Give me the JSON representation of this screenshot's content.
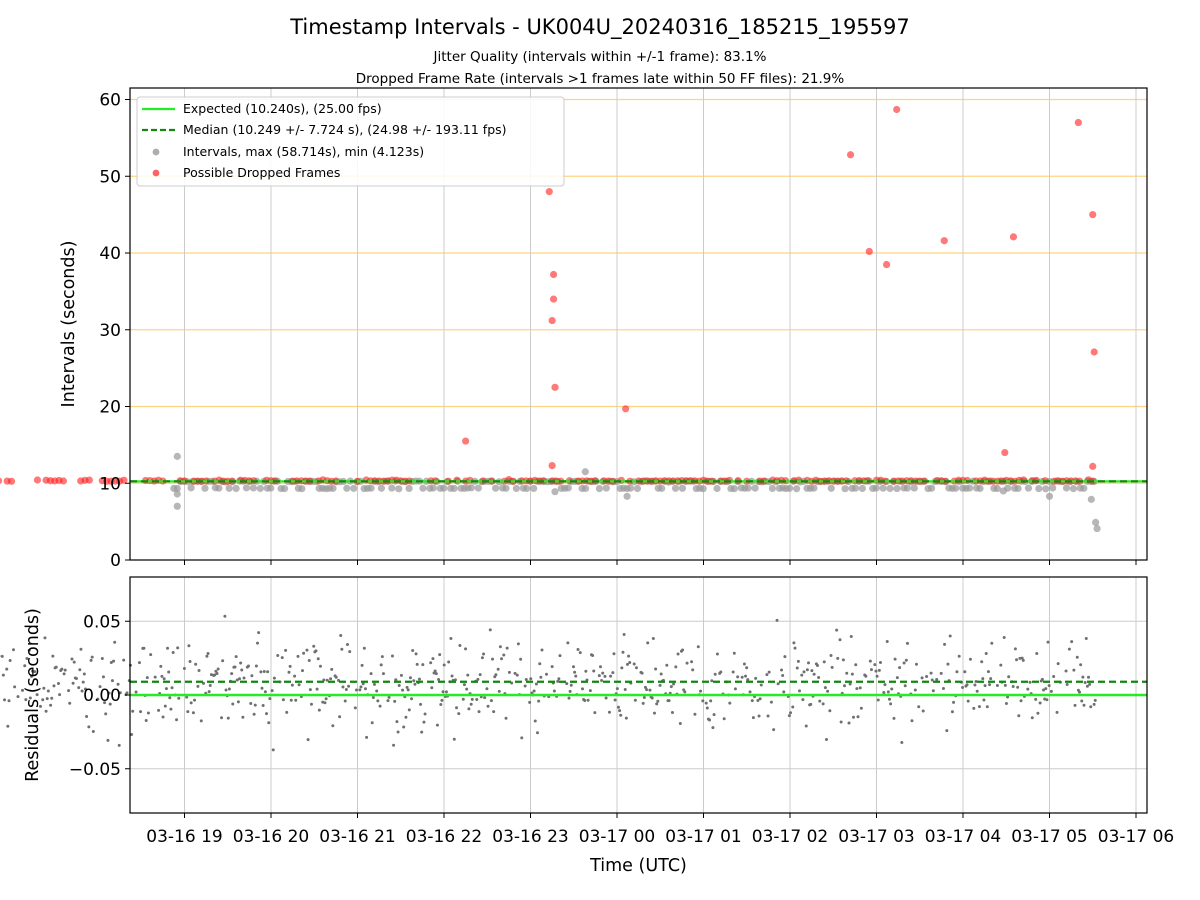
{
  "title": "Timestamp Intervals - UK004U_20240316_185215_195597",
  "subtitle_jitter": "Jitter Quality (intervals within +/-1 frame): 83.1%",
  "subtitle_dropped": "Dropped Frame Rate (intervals >1 frames late within 50 FF files): 21.9%",
  "colors": {
    "expected": "#22ee22",
    "median": "#118811",
    "intervals": "#999999",
    "dropped": "#ff2020",
    "threshold": "#ffd480",
    "residuals": "#707070",
    "grid": "#cccccc"
  },
  "chart_data": [
    {
      "type": "scatter",
      "ylabel": "Intervals (seconds)",
      "ylim": [
        0,
        61.5
      ],
      "yticks": [
        "0",
        "10",
        "20",
        "30",
        "40",
        "50",
        "60"
      ],
      "grid": true,
      "legend_position": "top-left",
      "legend": [
        "Expected (10.240s), (25.00 fps)",
        "Median (10.249 +/- 7.724 s), (24.98 +/- 193.11 fps)",
        "Intervals, max (58.714s), min (4.123s)",
        "Possible Dropped Frames"
      ],
      "expected_interval": 10.24,
      "median_interval": 10.249,
      "threshold_lines": [
        10,
        20,
        30,
        40,
        50,
        60
      ],
      "x_range": [
        "2024-03-16 18:52",
        "2024-03-17 05:32"
      ],
      "intervals_approx": [
        {
          "x": "2024-03-16 18:55",
          "y": 13.5
        },
        {
          "x": "2024-03-16 18:55",
          "y": 8.6
        },
        {
          "x": "2024-03-16 18:55",
          "y": 7.0
        },
        {
          "x": "2024-03-17 00:07",
          "y": 8.3
        },
        {
          "x": "2024-03-16 23:17",
          "y": 8.9
        },
        {
          "x": "2024-03-16 23:38",
          "y": 11.5
        },
        {
          "x": "2024-03-17 04:28",
          "y": 9.0
        },
        {
          "x": "2024-03-17 05:00",
          "y": 8.3
        },
        {
          "x": "2024-03-17 05:29",
          "y": 7.9
        },
        {
          "x": "2024-03-17 05:32",
          "y": 4.9
        },
        {
          "x": "2024-03-17 05:33",
          "y": 4.1
        }
      ],
      "dropped_frames_approx": [
        {
          "x": "2024-03-16 22:15",
          "y": 15.5
        },
        {
          "x": "2024-03-16 23:13",
          "y": 48.0
        },
        {
          "x": "2024-03-16 23:16",
          "y": 37.2
        },
        {
          "x": "2024-03-16 23:16",
          "y": 34.0
        },
        {
          "x": "2024-03-16 23:15",
          "y": 31.2
        },
        {
          "x": "2024-03-16 23:17",
          "y": 22.5
        },
        {
          "x": "2024-03-16 23:15",
          "y": 12.3
        },
        {
          "x": "2024-03-17 00:06",
          "y": 19.7
        },
        {
          "x": "2024-03-17 02:42",
          "y": 52.8
        },
        {
          "x": "2024-03-17 02:55",
          "y": 40.2
        },
        {
          "x": "2024-03-17 03:07",
          "y": 38.5
        },
        {
          "x": "2024-03-17 03:14",
          "y": 58.7
        },
        {
          "x": "2024-03-17 03:47",
          "y": 41.6
        },
        {
          "x": "2024-03-17 04:35",
          "y": 42.1
        },
        {
          "x": "2024-03-17 04:29",
          "y": 14.0
        },
        {
          "x": "2024-03-17 05:20",
          "y": 57.0
        },
        {
          "x": "2024-03-17 05:30",
          "y": 45.0
        },
        {
          "x": "2024-03-17 05:31",
          "y": 27.1
        },
        {
          "x": "2024-03-17 05:30",
          "y": 12.2
        }
      ]
    },
    {
      "type": "scatter",
      "xlabel": "Time (UTC)",
      "ylabel": "Residuals (seconds)",
      "ylim": [
        -0.08,
        0.08
      ],
      "yticks": [
        "−0.05",
        "0.00",
        "0.05"
      ],
      "xticks": [
        "03-16 19",
        "03-16 20",
        "03-16 21",
        "03-16 22",
        "03-16 23",
        "03-17 00",
        "03-17 01",
        "03-17 02",
        "03-17 03",
        "03-17 04",
        "03-17 05",
        "03-17 06"
      ],
      "grid": true,
      "expected_residual": 0.0,
      "median_residual": 0.009
    }
  ]
}
